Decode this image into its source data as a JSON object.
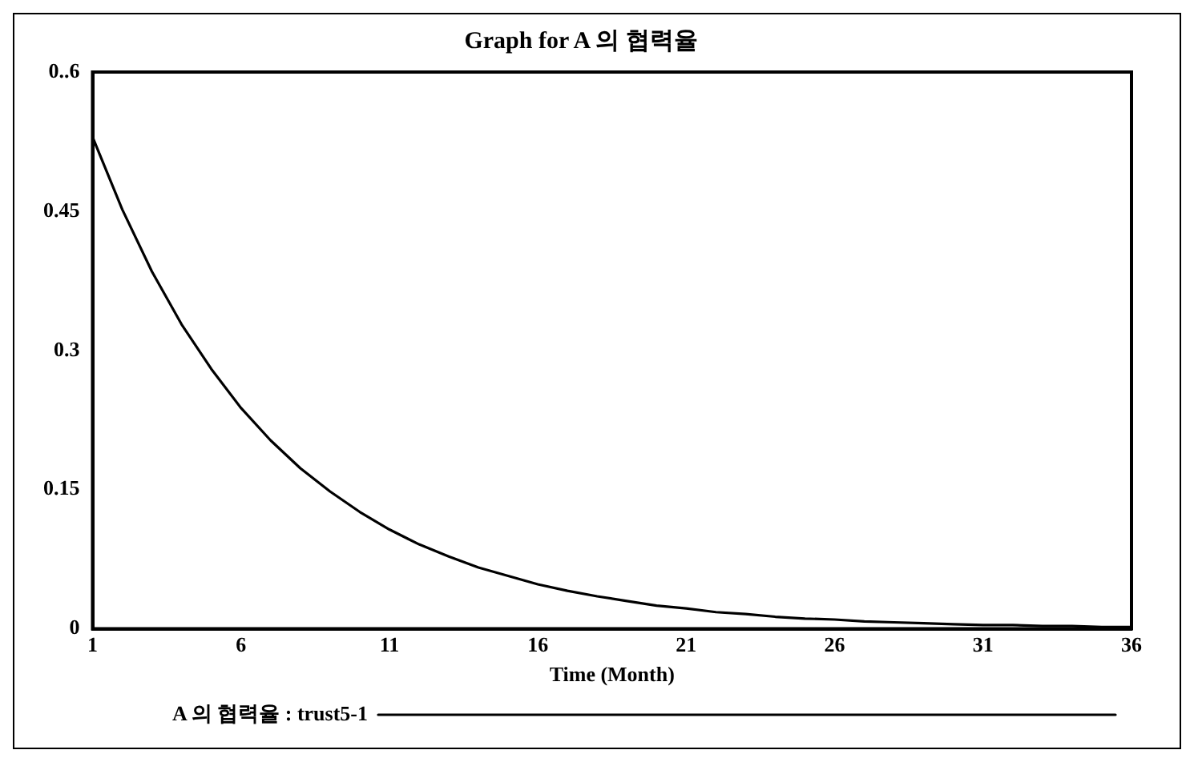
{
  "chart_data": {
    "type": "line",
    "title": "Graph for A 의 협력율",
    "xlabel": "Time (Month)",
    "x": [
      1,
      2,
      3,
      4,
      5,
      6,
      7,
      8,
      9,
      10,
      11,
      12,
      13,
      14,
      15,
      16,
      17,
      18,
      19,
      20,
      21,
      22,
      23,
      24,
      25,
      26,
      27,
      28,
      29,
      30,
      31,
      32,
      33,
      34,
      35,
      36
    ],
    "series": [
      {
        "name": "A 의 협력율 : trust5-1",
        "color": "#000000",
        "values": [
          0.53,
          0.452,
          0.385,
          0.328,
          0.28,
          0.238,
          0.203,
          0.173,
          0.148,
          0.126,
          0.107,
          0.091,
          0.078,
          0.066,
          0.057,
          0.048,
          0.041,
          0.035,
          0.03,
          0.025,
          0.022,
          0.018,
          0.016,
          0.013,
          0.011,
          0.01,
          0.008,
          0.007,
          0.006,
          0.005,
          0.004,
          0.004,
          0.003,
          0.003,
          0.002,
          0.002
        ]
      }
    ],
    "xlim": [
      1,
      36
    ],
    "xticks": [
      1,
      6,
      11,
      16,
      21,
      26,
      31,
      36
    ],
    "ylim": [
      0,
      0.6
    ],
    "yticks": [
      0,
      0.15,
      0.3,
      0.45,
      {
        "value": 0.6,
        "label": "0..6"
      }
    ],
    "grid": false,
    "legend": "bottom",
    "marker": "none",
    "line_style": "solid"
  }
}
